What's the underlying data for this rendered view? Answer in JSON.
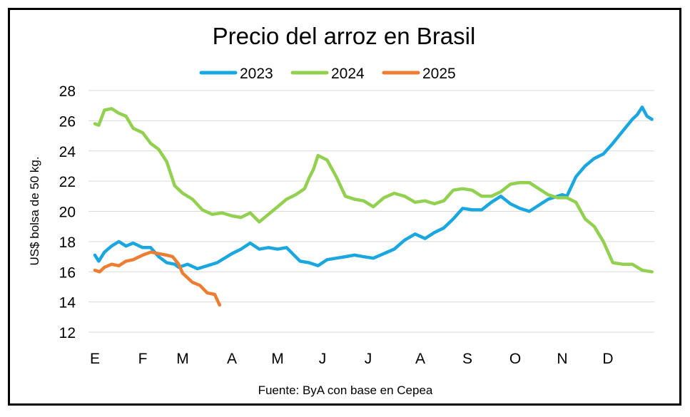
{
  "chart_data": {
    "type": "line",
    "title": "Precio del arroz en Brasil",
    "ylabel": "US$ bolsa de 50 kg.",
    "xlabel": "",
    "source": "Fuente: ByA con base en Cepea",
    "ylim": [
      12,
      28
    ],
    "yticks": [
      12,
      14,
      16,
      18,
      20,
      22,
      24,
      26,
      28
    ],
    "xlim": [
      0,
      12
    ],
    "xticks": [
      "E",
      "F",
      "M",
      "A",
      "M",
      "J",
      "J",
      "A",
      "S",
      "O",
      "N",
      "D"
    ],
    "grid": "horizontal",
    "legend_position": "top-center",
    "series": [
      {
        "name": "2023",
        "color": "#1aa7e0",
        "x": [
          0,
          0.08,
          0.2,
          0.35,
          0.5,
          0.65,
          0.8,
          1.0,
          1.2,
          1.4,
          1.6,
          1.8,
          1.9,
          2.1,
          2.3,
          2.5,
          2.7,
          2.9,
          3.0,
          3.2,
          3.4,
          3.6,
          3.8,
          4.0,
          4.2,
          4.5,
          4.7,
          4.9,
          5.1,
          5.3,
          5.5,
          5.7,
          5.9,
          6.1,
          6.3,
          6.5,
          6.7,
          6.9,
          7.1,
          7.3,
          7.5,
          7.7,
          7.9,
          8.1,
          8.3,
          8.5,
          8.7,
          8.9,
          9.1,
          9.3,
          9.5,
          9.7,
          9.9,
          10.0,
          10.1,
          10.3,
          10.5,
          10.7,
          10.9,
          11.1,
          11.3,
          11.5,
          11.6,
          11.7,
          11.8,
          11.9
        ],
        "values": [
          17.1,
          16.7,
          17.3,
          17.7,
          18.0,
          17.7,
          17.9,
          17.6,
          17.6,
          17.0,
          16.6,
          16.5,
          16.3,
          16.5,
          16.2,
          16.4,
          16.6,
          17.0,
          17.2,
          17.5,
          17.9,
          17.5,
          17.6,
          17.5,
          17.6,
          16.7,
          16.6,
          16.4,
          16.8,
          16.9,
          17.0,
          17.1,
          17.0,
          16.9,
          17.2,
          17.5,
          18.1,
          18.5,
          18.2,
          18.6,
          18.9,
          19.5,
          20.2,
          20.1,
          20.1,
          20.6,
          21.0,
          20.5,
          20.2,
          20.0,
          20.4,
          20.8,
          21.0,
          21.1,
          21.0,
          22.3,
          23.0,
          23.5,
          23.8,
          24.5,
          25.3,
          26.1,
          26.4,
          26.9,
          26.3,
          26.1
        ]
      },
      {
        "name": "2024",
        "color": "#92d050",
        "x": [
          0,
          0.08,
          0.2,
          0.35,
          0.5,
          0.65,
          0.8,
          1.0,
          1.2,
          1.4,
          1.6,
          1.8,
          2.0,
          2.2,
          2.4,
          2.6,
          2.8,
          3.0,
          3.2,
          3.4,
          3.6,
          3.8,
          4.0,
          4.2,
          4.4,
          4.6,
          4.7,
          4.8,
          4.9,
          5.1,
          5.3,
          5.5,
          5.7,
          5.9,
          6.1,
          6.3,
          6.5,
          6.7,
          6.9,
          7.1,
          7.3,
          7.5,
          7.7,
          7.9,
          8.1,
          8.3,
          8.5,
          8.7,
          8.9,
          9.1,
          9.3,
          9.5,
          9.7,
          9.9,
          10.1,
          10.3,
          10.5,
          10.7,
          10.9,
          11.1,
          11.3,
          11.5,
          11.7,
          11.9
        ],
        "values": [
          25.8,
          25.7,
          26.7,
          26.8,
          26.5,
          26.3,
          25.5,
          25.2,
          24.5,
          24.1,
          23.3,
          21.7,
          21.2,
          20.8,
          20.1,
          19.8,
          19.9,
          19.7,
          19.6,
          19.9,
          19.3,
          19.8,
          20.3,
          20.8,
          21.1,
          21.5,
          22.2,
          22.8,
          23.7,
          23.4,
          22.3,
          21.0,
          20.8,
          20.7,
          20.3,
          20.9,
          21.2,
          21.0,
          20.6,
          20.7,
          20.5,
          20.7,
          21.4,
          21.5,
          21.4,
          21.0,
          21.0,
          21.3,
          21.8,
          21.9,
          21.9,
          21.5,
          21.1,
          20.9,
          20.9,
          20.6,
          19.5,
          19.0,
          18.0,
          16.6,
          16.5,
          16.5,
          16.1,
          16.0
        ]
      },
      {
        "name": "2025",
        "color": "#ed7d31",
        "x": [
          0,
          0.1,
          0.2,
          0.35,
          0.5,
          0.65,
          0.8,
          1.0,
          1.2,
          1.4,
          1.6,
          1.75,
          1.9,
          2.0,
          2.2,
          2.35,
          2.5,
          2.65,
          2.75
        ],
        "values": [
          16.1,
          16.0,
          16.3,
          16.5,
          16.4,
          16.7,
          16.8,
          17.1,
          17.3,
          17.2,
          17.1,
          17.0,
          16.5,
          15.9,
          15.3,
          15.1,
          14.6,
          14.5,
          13.8
        ]
      }
    ]
  }
}
